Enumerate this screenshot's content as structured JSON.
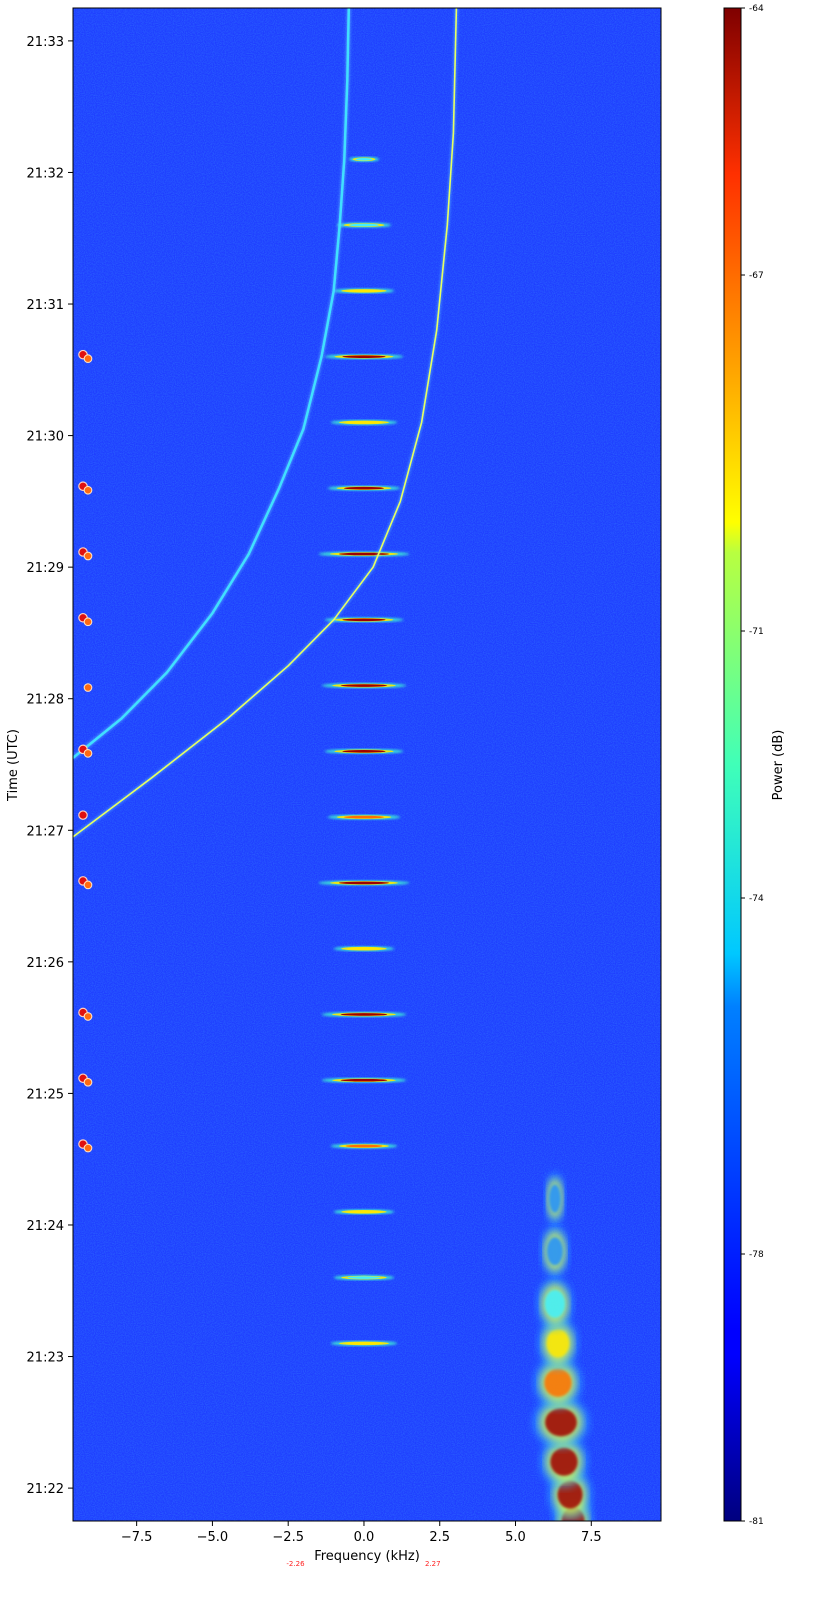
{
  "chart_data": {
    "type": "heatmap",
    "title": "",
    "xlabel": "Frequency (kHz)",
    "ylabel": "Time (UTC)",
    "xlim": [
      -9.6,
      9.8
    ],
    "x_ticks": [
      -7.5,
      -5.0,
      -2.5,
      0.0,
      2.5,
      5.0,
      7.5
    ],
    "x_tick_labels": [
      "−7.5",
      "−5.0",
      "−2.5",
      "0.0",
      "2.5",
      "5.0",
      "7.5"
    ],
    "y_ticks": [
      "21:22",
      "21:23",
      "21:24",
      "21:25",
      "21:26",
      "21:27",
      "21:28",
      "21:29",
      "21:30",
      "21:31",
      "21:32",
      "21:33"
    ],
    "y_range_minutes": [
      21.75,
      33.25
    ],
    "colorbar": {
      "label": "Power (dB)",
      "colormap": "jet",
      "range": [
        -81,
        -64
      ],
      "ticks": [
        "-64",
        "-67",
        "-71",
        "-74",
        "-78",
        "-81"
      ],
      "tick_values": [
        -64,
        -67,
        -71,
        -74,
        -78,
        -81
      ]
    },
    "extra_x_labels": [
      "-2.26",
      "2.27"
    ],
    "extra_x_values": [
      -2.26,
      2.27
    ],
    "background_color": "#1f3fff",
    "horizontal_bursts": [
      {
        "t": 23.1,
        "width": 1.1,
        "peak": "yellow"
      },
      {
        "t": 23.6,
        "width": 1.0,
        "peak": "cyan"
      },
      {
        "t": 24.1,
        "width": 1.0,
        "peak": "yellow"
      },
      {
        "t": 24.6,
        "width": 1.1,
        "peak": "orange"
      },
      {
        "t": 25.1,
        "width": 1.4,
        "peak": "red"
      },
      {
        "t": 25.6,
        "width": 1.4,
        "peak": "red"
      },
      {
        "t": 26.1,
        "width": 1.0,
        "peak": "yellow"
      },
      {
        "t": 26.6,
        "width": 1.5,
        "peak": "red"
      },
      {
        "t": 27.1,
        "width": 1.2,
        "peak": "orange"
      },
      {
        "t": 27.6,
        "width": 1.3,
        "peak": "red"
      },
      {
        "t": 28.1,
        "width": 1.4,
        "peak": "red"
      },
      {
        "t": 28.6,
        "width": 1.3,
        "peak": "red"
      },
      {
        "t": 29.1,
        "width": 1.5,
        "peak": "red"
      },
      {
        "t": 29.6,
        "width": 1.2,
        "peak": "red"
      },
      {
        "t": 30.1,
        "width": 1.1,
        "peak": "yellow"
      },
      {
        "t": 30.6,
        "width": 1.3,
        "peak": "red"
      },
      {
        "t": 31.1,
        "width": 1.0,
        "peak": "yellow"
      },
      {
        "t": 31.6,
        "width": 0.9,
        "peak": "cyan"
      },
      {
        "t": 32.1,
        "width": 0.5,
        "peak": "cyan"
      }
    ],
    "markers": [
      {
        "t": 24.6,
        "count": 2
      },
      {
        "t": 25.1,
        "count": 2
      },
      {
        "t": 25.6,
        "count": 2
      },
      {
        "t": 26.6,
        "count": 2
      },
      {
        "t": 27.1,
        "count": 1
      },
      {
        "t": 27.6,
        "count": 2
      },
      {
        "t": 28.1,
        "count": 1,
        "offset": true
      },
      {
        "t": 28.6,
        "count": 2
      },
      {
        "t": 29.1,
        "count": 2
      },
      {
        "t": 29.6,
        "count": 2
      },
      {
        "t": 30.6,
        "count": 2
      }
    ],
    "traces": [
      {
        "name": "",
        "color": "#40e0ff",
        "width": 2.5,
        "points": [
          [
            -9.6,
            27.55
          ],
          [
            -8.0,
            27.85
          ],
          [
            -6.5,
            28.2
          ],
          [
            -5.0,
            28.65
          ],
          [
            -3.8,
            29.1
          ],
          [
            -2.8,
            29.6
          ],
          [
            -2.0,
            30.05
          ],
          [
            -1.4,
            30.6
          ],
          [
            -1.0,
            31.1
          ],
          [
            -0.8,
            31.6
          ],
          [
            -0.65,
            32.1
          ],
          [
            -0.55,
            32.7
          ],
          [
            -0.5,
            33.25
          ]
        ]
      },
      {
        "name": "",
        "color": "#e8ff60",
        "width": 1.6,
        "points": [
          [
            -9.6,
            26.95
          ],
          [
            -7.0,
            27.4
          ],
          [
            -4.5,
            27.85
          ],
          [
            -2.5,
            28.25
          ],
          [
            -1.0,
            28.6
          ],
          [
            0.3,
            29.0
          ],
          [
            1.2,
            29.5
          ],
          [
            1.9,
            30.1
          ],
          [
            2.4,
            30.8
          ],
          [
            2.75,
            31.6
          ],
          [
            2.95,
            32.3
          ],
          [
            3.05,
            33.25
          ]
        ]
      }
    ],
    "blob": [
      {
        "t": 21.75,
        "x": 6.9,
        "w": 0.5,
        "peak": "red"
      },
      {
        "t": 21.95,
        "x": 6.8,
        "w": 0.55,
        "peak": "red"
      },
      {
        "t": 22.2,
        "x": 6.6,
        "w": 0.6,
        "peak": "red"
      },
      {
        "t": 22.5,
        "x": 6.5,
        "w": 0.7,
        "peak": "red"
      },
      {
        "t": 22.8,
        "x": 6.4,
        "w": 0.6,
        "peak": "orange"
      },
      {
        "t": 23.1,
        "x": 6.4,
        "w": 0.5,
        "peak": "yellow"
      },
      {
        "t": 23.4,
        "x": 6.3,
        "w": 0.45,
        "peak": "cyan"
      },
      {
        "t": 23.8,
        "x": 6.3,
        "w": 0.35,
        "peak": "lightblue"
      },
      {
        "t": 24.2,
        "x": 6.3,
        "w": 0.25,
        "peak": "lightblue"
      }
    ]
  }
}
